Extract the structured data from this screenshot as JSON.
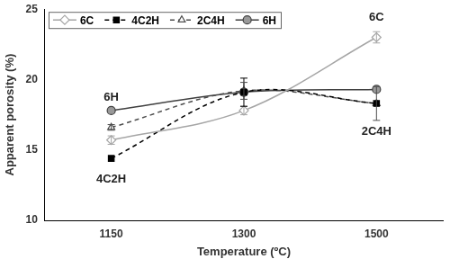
{
  "chart_data": {
    "type": "line",
    "x_label": "Temperature (ºC)",
    "y_label": "Apparent porosity (%)",
    "categories": [
      "1150",
      "1300",
      "1500"
    ],
    "ylim": [
      10,
      25
    ],
    "yticks": [
      10,
      15,
      20,
      25
    ],
    "grid": false,
    "legend": "top-left",
    "series": [
      {
        "name": "6C",
        "color": "#a6a6a6",
        "marker": "diamond-open",
        "line_style": "solid",
        "values": [
          15.7,
          17.8,
          23.0
        ],
        "errors": [
          0.3,
          0.3,
          0.4
        ]
      },
      {
        "name": "4C2H",
        "color": "#000000",
        "marker": "square",
        "line_style": "dashed",
        "values": [
          14.4,
          19.1,
          18.3
        ],
        "errors": [
          0.0,
          1.0,
          0.0
        ]
      },
      {
        "name": "2C4H",
        "color": "#4d4d4d",
        "marker": "triangle-open",
        "line_style": "dashed",
        "values": [
          16.6,
          19.2,
          18.3
        ],
        "errors": [
          0.2,
          0.6,
          1.2
        ]
      },
      {
        "name": "6H",
        "color": "#404040",
        "marker": "circle",
        "line_style": "solid",
        "values": [
          17.8,
          19.1,
          19.3
        ],
        "errors": [
          0.0,
          0.0,
          0.0
        ]
      }
    ],
    "annotations": [
      {
        "text": "6H",
        "x": "1150",
        "y": 18.7
      },
      {
        "text": "4C2H",
        "x": "1150",
        "y": 12.9
      },
      {
        "text": "6C",
        "x": "1500",
        "y": 24.4
      },
      {
        "text": "2C4H",
        "x": "1500",
        "y": 16.3
      }
    ]
  }
}
